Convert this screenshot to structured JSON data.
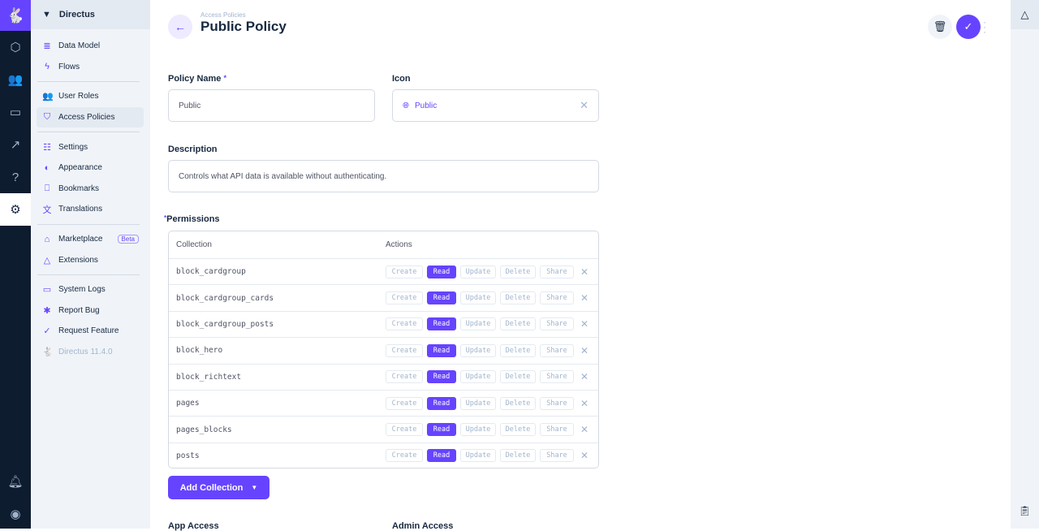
{
  "nav": {
    "project": "Directus",
    "items": [
      {
        "label": "Data Model",
        "icon": "database-icon",
        "glyph": "≣"
      },
      {
        "label": "Flows",
        "icon": "bolt-icon",
        "glyph": "ϟ"
      },
      {
        "label": "User Roles",
        "icon": "users-icon",
        "glyph": "👥"
      },
      {
        "label": "Access Policies",
        "icon": "shield-icon",
        "glyph": "⛉"
      },
      {
        "label": "Settings",
        "icon": "sliders-icon",
        "glyph": "☷"
      },
      {
        "label": "Appearance",
        "icon": "palette-icon",
        "glyph": "◐"
      },
      {
        "label": "Bookmarks",
        "icon": "bookmark-icon",
        "glyph": "⎕"
      },
      {
        "label": "Translations",
        "icon": "translate-icon",
        "glyph": "文"
      },
      {
        "label": "Marketplace",
        "icon": "store-icon",
        "glyph": "⌂",
        "badge": "Beta"
      },
      {
        "label": "Extensions",
        "icon": "shapes-icon",
        "glyph": "△"
      },
      {
        "label": "System Logs",
        "icon": "terminal-icon",
        "glyph": "▭"
      },
      {
        "label": "Report Bug",
        "icon": "bug-icon",
        "glyph": "✱"
      },
      {
        "label": "Request Feature",
        "icon": "badge-check-icon",
        "glyph": "✓"
      }
    ],
    "version": "Directus 11.4.0"
  },
  "header": {
    "breadcrumb": "Access Policies",
    "title": "Public Policy"
  },
  "form": {
    "policy_name_label": "Policy Name",
    "required": "*",
    "policy_name_value": "Public",
    "icon_label": "Icon",
    "icon_value": "Public",
    "description_label": "Description",
    "description_value": "Controls what API data is available without authenticating.",
    "permissions_label": "Permissions",
    "columns": [
      "Collection",
      "Actions"
    ],
    "actions": [
      "Create",
      "Read",
      "Update",
      "Delete",
      "Share"
    ],
    "rows": [
      {
        "collection": "block_cardgroup",
        "enabled": [
          "Read"
        ]
      },
      {
        "collection": "block_cardgroup_cards",
        "enabled": [
          "Read"
        ]
      },
      {
        "collection": "block_cardgroup_posts",
        "enabled": [
          "Read"
        ]
      },
      {
        "collection": "block_hero",
        "enabled": [
          "Read"
        ]
      },
      {
        "collection": "block_richtext",
        "enabled": [
          "Read"
        ]
      },
      {
        "collection": "pages",
        "enabled": [
          "Read"
        ]
      },
      {
        "collection": "pages_blocks",
        "enabled": [
          "Read"
        ]
      },
      {
        "collection": "posts",
        "enabled": [
          "Read"
        ]
      }
    ],
    "add_collection": "Add Collection",
    "app_access_label": "App Access",
    "admin_access_label": "Admin Access"
  },
  "colors": {
    "accent": "#6644ff",
    "rail": "#0e1c2f"
  }
}
